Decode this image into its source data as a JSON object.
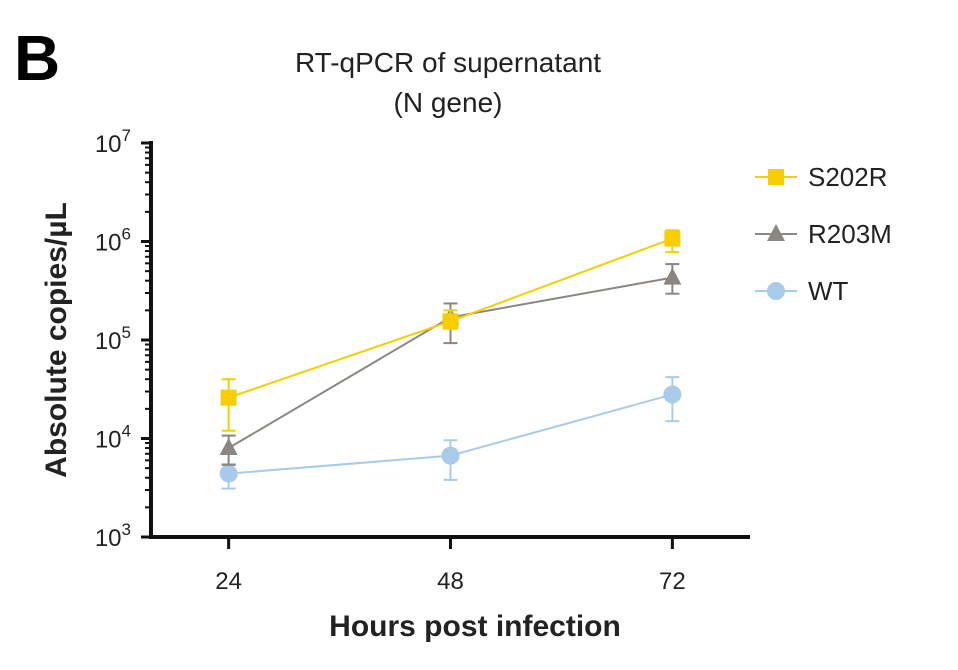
{
  "panel_label": "B",
  "chart_data": {
    "type": "line",
    "title_lines": [
      "RT-qPCR of supernatant",
      "(N gene)"
    ],
    "xlabel": "Hours post infection",
    "ylabel": "Absolute copies/µL",
    "x": [
      24,
      48,
      72
    ],
    "x_ticks": [
      "24",
      "48",
      "72"
    ],
    "xlim": [
      15.6,
      80.4
    ],
    "yscale": "log",
    "ylim": [
      1000,
      10000000
    ],
    "y_ticks": [
      {
        "base": "10",
        "exp": "3",
        "value": 1000
      },
      {
        "base": "10",
        "exp": "4",
        "value": 10000
      },
      {
        "base": "10",
        "exp": "5",
        "value": 100000
      },
      {
        "base": "10",
        "exp": "6",
        "value": 1000000
      },
      {
        "base": "10",
        "exp": "7",
        "value": 10000000
      }
    ],
    "grid": false,
    "legend_position": "right",
    "series": [
      {
        "name": "S202R",
        "color": "#F7CE00",
        "marker": "square",
        "values": [
          26000,
          155000,
          1070000
        ],
        "err_low": [
          12000,
          130000,
          780000
        ],
        "err_high": [
          40000,
          200000,
          1300000
        ]
      },
      {
        "name": "R203M",
        "color": "#8C8682",
        "marker": "triangle",
        "values": [
          8000,
          170000,
          430000
        ],
        "err_low": [
          5400,
          93000,
          295000
        ],
        "err_high": [
          10700,
          235000,
          590000
        ]
      },
      {
        "name": "WT",
        "color": "#A9CBEA",
        "marker": "circle",
        "values": [
          4400,
          6700,
          28000
        ],
        "err_low": [
          3100,
          3800,
          15000
        ],
        "err_high": [
          5500,
          9600,
          42000
        ]
      }
    ]
  }
}
